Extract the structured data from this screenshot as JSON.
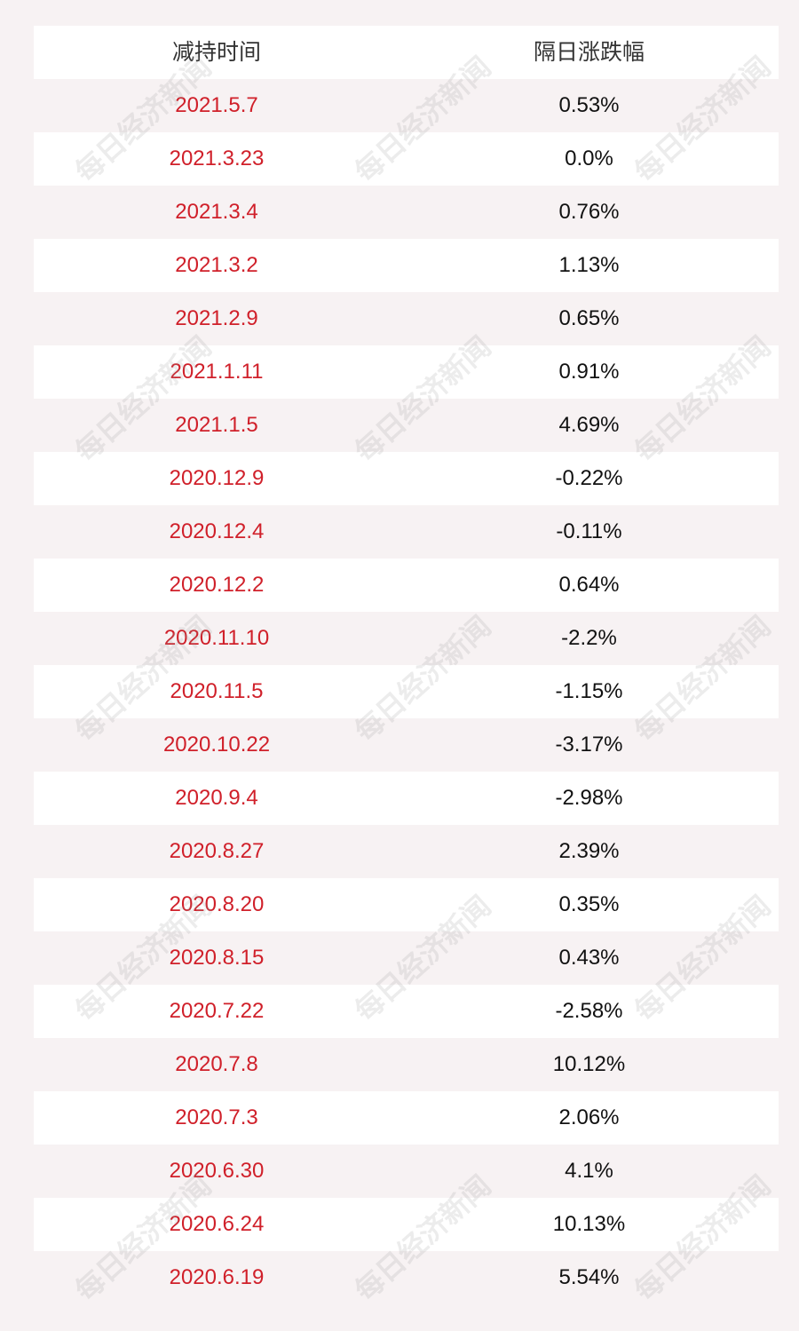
{
  "table": {
    "headers": [
      "减持时间",
      "隔日涨跌幅"
    ],
    "rows": [
      {
        "date": "2021.5.7",
        "change": "0.53%"
      },
      {
        "date": "2021.3.23",
        "change": "0.0%"
      },
      {
        "date": "2021.3.4",
        "change": "0.76%"
      },
      {
        "date": "2021.3.2",
        "change": "1.13%"
      },
      {
        "date": "2021.2.9",
        "change": "0.65%"
      },
      {
        "date": "2021.1.11",
        "change": "0.91%"
      },
      {
        "date": "2021.1.5",
        "change": "4.69%"
      },
      {
        "date": "2020.12.9",
        "change": "-0.22%"
      },
      {
        "date": "2020.12.4",
        "change": "-0.11%"
      },
      {
        "date": "2020.12.2",
        "change": "0.64%"
      },
      {
        "date": "2020.11.10",
        "change": "-2.2%"
      },
      {
        "date": "2020.11.5",
        "change": "-1.15%"
      },
      {
        "date": "2020.10.22",
        "change": "-3.17%"
      },
      {
        "date": "2020.9.4",
        "change": "-2.98%"
      },
      {
        "date": "2020.8.27",
        "change": "2.39%"
      },
      {
        "date": "2020.8.20",
        "change": "0.35%"
      },
      {
        "date": "2020.8.15",
        "change": "0.43%"
      },
      {
        "date": "2020.7.22",
        "change": "-2.58%"
      },
      {
        "date": "2020.7.8",
        "change": "10.12%"
      },
      {
        "date": "2020.7.3",
        "change": "2.06%"
      },
      {
        "date": "2020.6.30",
        "change": "4.1%"
      },
      {
        "date": "2020.6.24",
        "change": "10.13%"
      },
      {
        "date": "2020.6.19",
        "change": "5.54%"
      }
    ]
  },
  "watermark": "每日经济新闻",
  "colors": {
    "date_text": "#d0202a",
    "value_text": "#111111",
    "row_alt": "#f7f2f3",
    "row": "#ffffff"
  }
}
